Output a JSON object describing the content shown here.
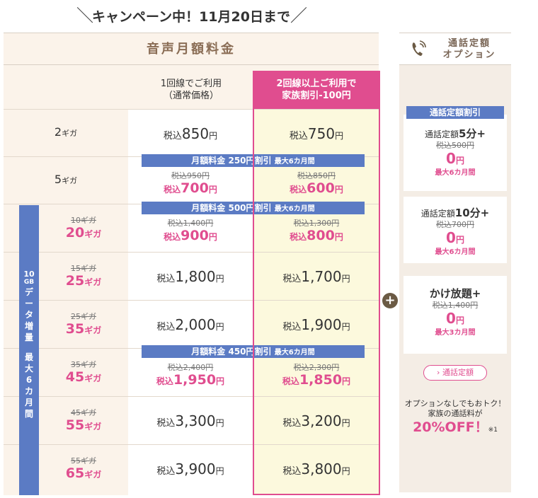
{
  "campaign": "キャンペーン中！11月20日まで",
  "main_title": "音声月額料金",
  "col1": {
    "line1": "1回線でご利用",
    "line2": "（通常価格）"
  },
  "col2": {
    "line1": "2回線以上ご利用で",
    "line2": "家族割引-100円"
  },
  "tax_prefix": "税込",
  "yen": "円",
  "rows": [
    {
      "giga": "2",
      "a": "850",
      "b": "750"
    },
    {
      "giga": "5",
      "a_old": "税込950円",
      "a": "700",
      "b_old": "税込850円",
      "b": "600"
    },
    {
      "giga_old": "10ギガ",
      "giga": "20",
      "a_old": "税込1,400円",
      "a": "900",
      "b_old": "税込1,300円",
      "b": "800"
    },
    {
      "giga_old": "15ギガ",
      "giga": "25",
      "a": "1,800",
      "b": "1,700"
    },
    {
      "giga_old": "25ギガ",
      "giga": "35",
      "a": "2,000",
      "b": "1,900"
    },
    {
      "giga_old": "35ギガ",
      "giga": "45",
      "a_old": "税込2,400円",
      "a": "1,950",
      "b_old": "税込2,300円",
      "b": "1,850"
    },
    {
      "giga_old": "45ギガ",
      "giga": "55",
      "a": "3,300",
      "b": "3,200"
    },
    {
      "giga_old": "55ギガ",
      "giga": "65",
      "a": "3,900",
      "b": "3,800"
    }
  ],
  "giga_unit": "ギガ",
  "banners": {
    "b1": {
      "main": "月額料金 250円割引",
      "sub": "最大6カ月間"
    },
    "b2": {
      "main": "月額料金 500円割引",
      "sub": "最大6カ月間"
    },
    "b3": {
      "main": "月額料金 450円割引",
      "sub": "最大6カ月間"
    }
  },
  "side_band": {
    "l1": "10",
    "l2": "GB",
    "l3": "デ",
    "l4": "ー",
    "l5": "タ",
    "l6": "増",
    "l7": "量",
    "l8": "最",
    "l9": "大",
    "l10": "6",
    "l11": "カ",
    "l12": "月",
    "l13": "間"
  },
  "option": {
    "head_l1": "通話定額",
    "head_l2": "オプション",
    "tag": "通話定額割引",
    "cards": [
      {
        "pre": "通話定額",
        "name": "5分+",
        "old": "税込500円",
        "zero": "0",
        "unit": "円",
        "months": "最大6カ月間"
      },
      {
        "pre": "通話定額",
        "name": "10分+",
        "old": "税込700円",
        "zero": "0",
        "unit": "円",
        "months": "最大6カ月間"
      },
      {
        "pre": "",
        "name": "かけ放題+",
        "old": "税込1,400円",
        "zero": "0",
        "unit": "円",
        "months": "最大3カ月間"
      }
    ],
    "button": "通話定額",
    "note_l1": "オプションなしでもおトク！",
    "note_l2": "家族の通話料が",
    "note_big": "20%OFF！",
    "note_ref": "※1"
  },
  "colors": {
    "pink": "#e04d8f",
    "blue": "#5b7bc4",
    "beige": "#fbf3ea",
    "yellow": "#fcf9dd"
  }
}
